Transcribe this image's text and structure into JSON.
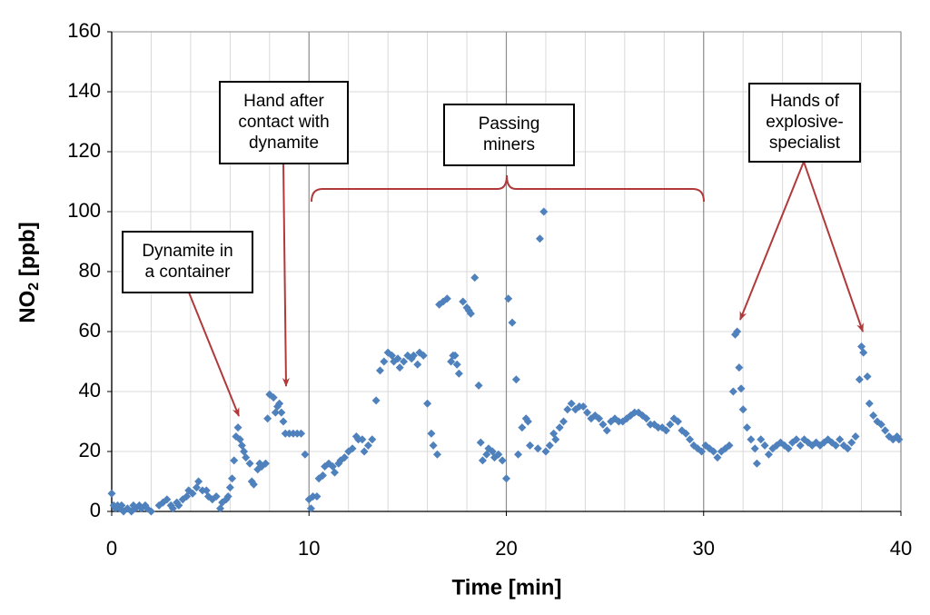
{
  "chart_data": {
    "type": "scatter",
    "x_label": "Time [min]",
    "y_label": [
      "NO",
      "2",
      " [ppb]"
    ],
    "color": "#4f81bd",
    "xlim": [
      0,
      40
    ],
    "ylim": [
      0,
      160
    ],
    "xticks": [
      0,
      10,
      20,
      30,
      40
    ],
    "yticks": [
      0,
      20,
      40,
      60,
      80,
      100,
      120,
      140,
      160
    ],
    "x_minor_grid": [
      2,
      4,
      6,
      8,
      12,
      14,
      16,
      18,
      22,
      24,
      26,
      28,
      32,
      34,
      36,
      38
    ],
    "grid": true,
    "annotations": [
      {
        "lines": [
          "Dynamite in",
          "a container"
        ]
      },
      {
        "lines": [
          "Hand after",
          "contact with",
          "dynamite"
        ]
      },
      {
        "lines": [
          "Passing",
          "miners"
        ]
      },
      {
        "lines": [
          "Hands of",
          "explosive-",
          "specialist"
        ]
      }
    ],
    "x": [
      0,
      0.1,
      0.2,
      0.3,
      0.4,
      0.5,
      0.6,
      0.8,
      1.0,
      1.1,
      1.2,
      1.4,
      1.5,
      1.7,
      1.8,
      2.0,
      2.4,
      2.6,
      2.8,
      3.0,
      3.1,
      3.3,
      3.4,
      3.6,
      3.8,
      3.9,
      4.1,
      4.3,
      4.4,
      4.6,
      4.8,
      4.9,
      5.1,
      5.3,
      5.5,
      5.6,
      5.8,
      5.9,
      6.0,
      6.1,
      6.2,
      6.3,
      6.4,
      6.5,
      6.6,
      6.7,
      6.8,
      7.0,
      7.1,
      7.2,
      7.4,
      7.5,
      7.6,
      7.8,
      7.9,
      8.0,
      8.2,
      8.3,
      8.4,
      8.5,
      8.6,
      8.7,
      8.8,
      9.0,
      9.2,
      9.4,
      9.6,
      9.8,
      10.0,
      10.1,
      10.2,
      10.4,
      10.5,
      10.7,
      10.8,
      11.0,
      11.2,
      11.3,
      11.5,
      11.6,
      11.8,
      12.0,
      12.2,
      12.4,
      12.5,
      12.7,
      12.8,
      13.0,
      13.2,
      13.4,
      13.6,
      13.8,
      14.0,
      14.2,
      14.3,
      14.5,
      14.6,
      14.8,
      15.0,
      15.2,
      15.3,
      15.5,
      15.6,
      15.8,
      16.0,
      16.2,
      16.3,
      16.5,
      16.6,
      16.8,
      17.0,
      17.2,
      17.3,
      17.4,
      17.5,
      17.6,
      17.8,
      18.0,
      18.1,
      18.2,
      18.4,
      18.6,
      18.7,
      18.8,
      19.0,
      19.1,
      19.3,
      19.4,
      19.6,
      19.8,
      20.0,
      20.1,
      20.3,
      20.5,
      20.6,
      20.8,
      21.0,
      21.1,
      21.2,
      21.6,
      21.7,
      21.9,
      22.0,
      22.2,
      22.4,
      22.5,
      22.7,
      22.9,
      23.1,
      23.3,
      23.5,
      23.7,
      23.9,
      24.1,
      24.3,
      24.5,
      24.7,
      24.9,
      25.1,
      25.3,
      25.5,
      25.7,
      25.9,
      26.1,
      26.3,
      26.5,
      26.7,
      26.9,
      27.1,
      27.3,
      27.5,
      27.7,
      27.9,
      28.1,
      28.3,
      28.5,
      28.7,
      28.9,
      29.1,
      29.3,
      29.5,
      29.7,
      29.9,
      30.1,
      30.3,
      30.5,
      30.7,
      30.9,
      31.1,
      31.3,
      31.5,
      31.6,
      31.7,
      31.8,
      31.9,
      32.0,
      32.2,
      32.4,
      32.6,
      32.7,
      32.9,
      33.1,
      33.3,
      33.5,
      33.7,
      33.9,
      34.1,
      34.3,
      34.5,
      34.7,
      34.9,
      35.1,
      35.3,
      35.5,
      35.7,
      35.9,
      36.1,
      36.3,
      36.5,
      36.7,
      36.9,
      37.1,
      37.3,
      37.5,
      37.7,
      37.9,
      38.0,
      38.1,
      38.3,
      38.4,
      38.6,
      38.8,
      39.0,
      39.2,
      39.4,
      39.6,
      39.8,
      39.9
    ],
    "values": [
      6,
      2,
      1,
      2,
      1,
      2,
      0,
      1,
      0,
      2,
      1,
      2,
      1,
      2,
      1,
      0,
      2,
      3,
      4,
      2,
      1,
      3,
      2,
      4,
      5,
      7,
      6,
      8,
      10,
      7,
      7,
      5,
      4,
      5,
      1,
      3,
      4,
      5,
      8,
      11,
      17,
      25,
      28,
      24,
      22,
      20,
      18,
      16,
      10,
      9,
      14,
      16,
      15,
      16,
      31,
      39,
      38,
      33,
      35,
      36,
      33,
      30,
      26,
      26,
      26,
      26,
      26,
      19,
      4,
      1,
      5,
      5,
      11,
      12,
      15,
      16,
      15,
      13,
      16,
      17,
      18,
      20,
      21,
      25,
      24,
      24,
      20,
      22,
      24,
      37,
      47,
      50,
      53,
      52,
      50,
      51,
      48,
      50,
      52,
      51,
      52,
      49,
      53,
      52,
      36,
      26,
      22,
      19,
      69,
      70,
      71,
      50,
      52,
      52,
      49,
      46,
      70,
      68,
      67,
      66,
      78,
      42,
      23,
      17,
      19,
      21,
      20,
      18,
      19,
      17,
      11,
      71,
      63,
      44,
      19,
      28,
      31,
      30,
      22,
      21,
      91,
      100,
      20,
      22,
      26,
      24,
      28,
      30,
      34,
      36,
      34,
      35,
      35,
      33,
      31,
      32,
      31,
      29,
      27,
      30,
      31,
      30,
      30,
      31,
      32,
      33,
      33,
      32,
      31,
      29,
      29,
      28,
      28,
      27,
      29,
      31,
      30,
      27,
      26,
      24,
      22,
      21,
      20,
      22,
      21,
      20,
      18,
      20,
      21,
      22,
      40,
      59,
      60,
      48,
      41,
      34,
      28,
      24,
      21,
      16,
      24,
      22,
      19,
      21,
      22,
      23,
      22,
      21,
      23,
      24,
      22,
      24,
      23,
      22,
      23,
      22,
      23,
      24,
      23,
      22,
      24,
      22,
      21,
      23,
      25,
      44,
      55,
      53,
      45,
      36,
      32,
      30,
      29,
      27,
      25,
      24,
      25,
      24
    ]
  }
}
